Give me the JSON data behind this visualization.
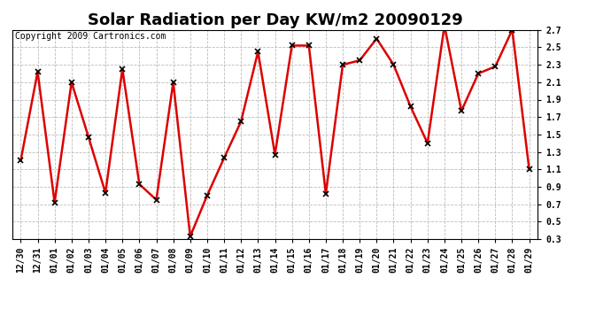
{
  "title": "Solar Radiation per Day KW/m2 20090129",
  "copyright": "Copyright 2009 Cartronics.com",
  "x_labels": [
    "12/30",
    "12/31",
    "01/01",
    "01/02",
    "01/03",
    "01/04",
    "01/05",
    "01/06",
    "01/07",
    "01/08",
    "01/09",
    "01/10",
    "01/11",
    "01/12",
    "01/13",
    "01/14",
    "01/15",
    "01/16",
    "01/17",
    "01/18",
    "01/19",
    "01/20",
    "01/21",
    "01/22",
    "01/23",
    "01/24",
    "01/25",
    "01/26",
    "01/27",
    "01/28",
    "01/29"
  ],
  "y_values": [
    1.2,
    2.22,
    0.72,
    2.1,
    1.47,
    0.83,
    2.25,
    0.93,
    0.75,
    2.1,
    0.33,
    0.8,
    1.23,
    1.65,
    2.45,
    1.27,
    2.52,
    2.52,
    0.82,
    2.3,
    2.35,
    2.6,
    2.3,
    1.82,
    1.4,
    2.75,
    1.77,
    2.2,
    2.28,
    2.7,
    1.1
  ],
  "line_color": "#dd0000",
  "marker": "x",
  "marker_size": 4,
  "marker_color": "#000000",
  "ylim": [
    0.3,
    2.7
  ],
  "yticks": [
    0.3,
    0.5,
    0.7,
    0.9,
    1.1,
    1.3,
    1.5,
    1.7,
    1.9,
    2.1,
    2.3,
    2.5,
    2.7
  ],
  "background_color": "#ffffff",
  "plot_bg_color": "#ffffff",
  "grid_color": "#bbbbbb",
  "title_fontsize": 13,
  "copyright_fontsize": 7,
  "tick_fontsize": 7,
  "linewidth": 1.8
}
